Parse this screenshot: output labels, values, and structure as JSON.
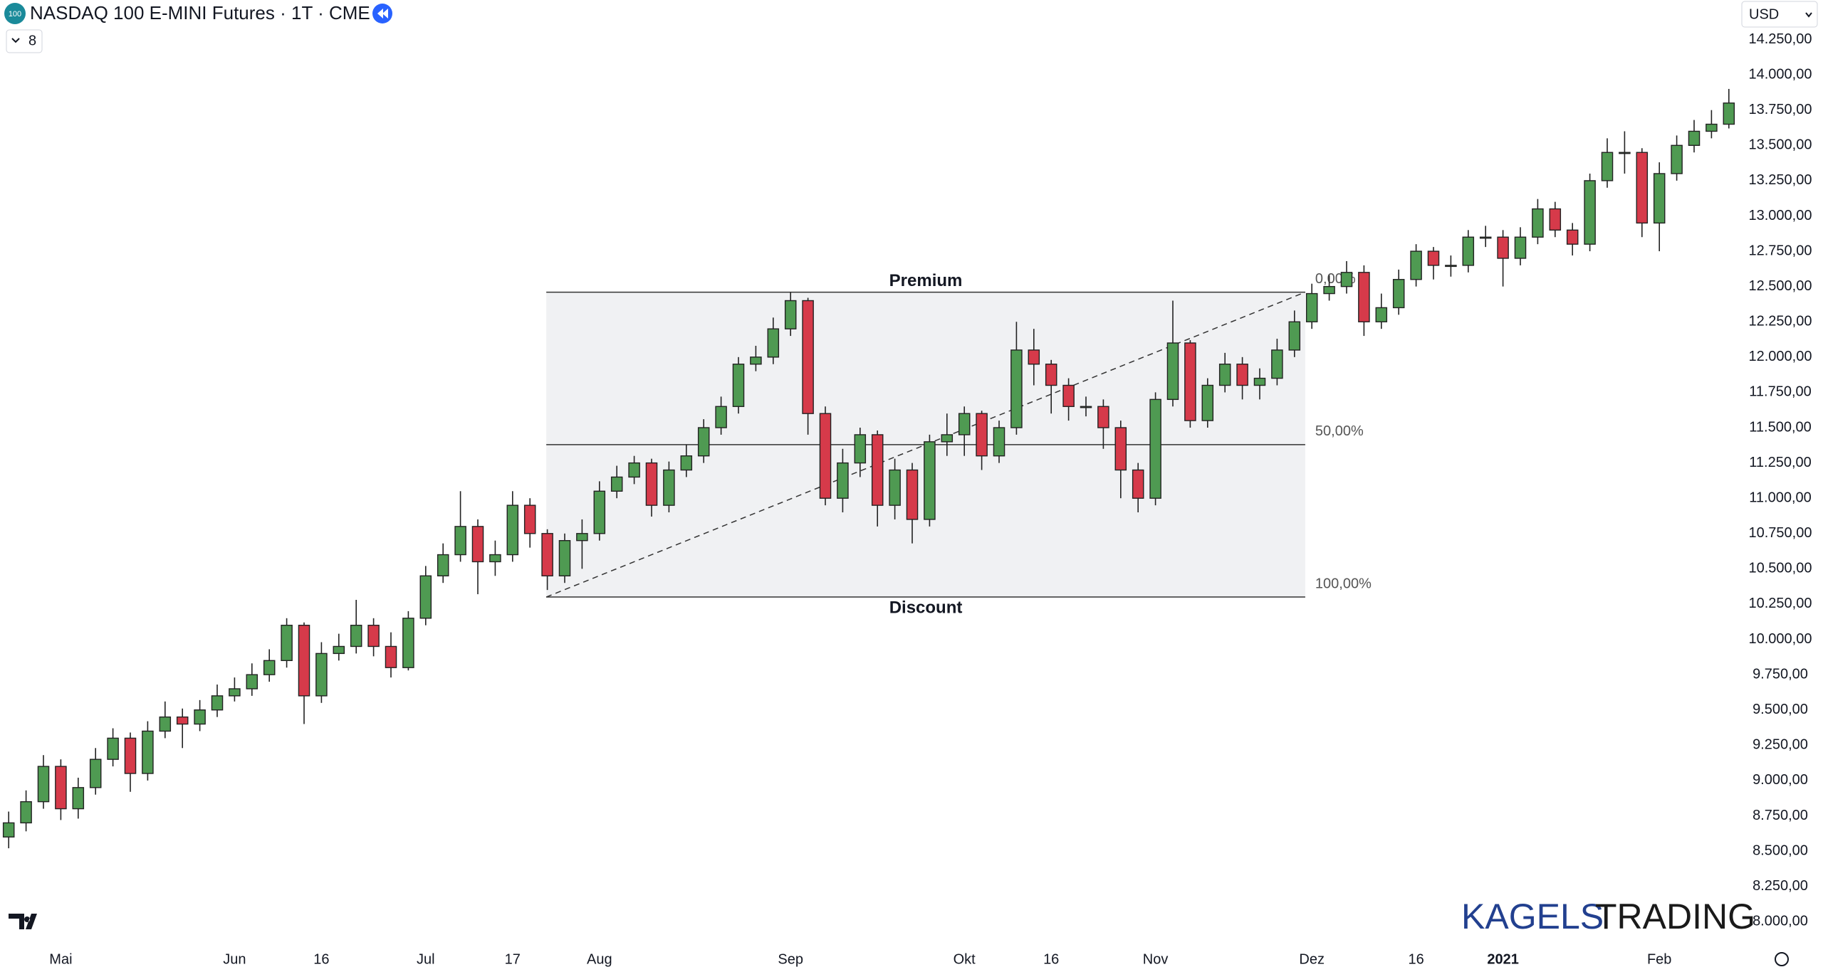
{
  "header": {
    "icon": "100",
    "title": "NASDAQ 100 E-MINI Futures · 1T · CME",
    "interval_badge": "8",
    "currency": "USD"
  },
  "watermark": {
    "brand_1": "KAGELS",
    "brand_2": "TRADING"
  },
  "chart_data": {
    "type": "candlestick",
    "categories": [
      null,
      null,
      null,
      "Mai",
      null,
      null,
      null,
      null,
      null,
      null,
      null,
      null,
      null,
      "Jun",
      null,
      null,
      null,
      null,
      "16",
      null,
      null,
      null,
      null,
      null,
      "Jul",
      null,
      null,
      null,
      null,
      "17",
      null,
      null,
      null,
      null,
      "Aug",
      null,
      null,
      null,
      null,
      null,
      null,
      null,
      null,
      null,
      null,
      "Sep",
      null,
      null,
      null,
      null,
      null,
      null,
      null,
      null,
      null,
      "Okt",
      null,
      null,
      null,
      null,
      "16",
      null,
      null,
      null,
      null,
      null,
      "Nov",
      null,
      null,
      null,
      null,
      null,
      null,
      null,
      null,
      "Dez",
      null,
      null,
      null,
      null,
      null,
      "16",
      null,
      null,
      null,
      null,
      "2021",
      null,
      null,
      null,
      null,
      null,
      null,
      null,
      null,
      "Feb",
      null,
      null,
      null,
      null
    ],
    "open": [
      8600,
      8700,
      8850,
      9100,
      8800,
      8950,
      9150,
      9300,
      9050,
      9350,
      9450,
      9400,
      9500,
      9600,
      9650,
      9750,
      9850,
      10100,
      9600,
      9900,
      9950,
      10100,
      9950,
      9800,
      10150,
      10450,
      10600,
      10800,
      10550,
      10600,
      10950,
      10750,
      10450,
      10700,
      10750,
      11050,
      11150,
      11250,
      10950,
      11200,
      11300,
      11500,
      11650,
      11950,
      12000,
      12200,
      12400,
      11600,
      11000,
      11250,
      11450,
      10950,
      11200,
      10850,
      11400,
      11450,
      11600,
      11300,
      11500,
      12050,
      11950,
      11800,
      11650,
      11650,
      11500,
      11200,
      11000,
      11700,
      12100,
      11550,
      11800,
      11950,
      11800,
      11850,
      12050,
      12250,
      12450,
      12500,
      12600,
      12250,
      12350,
      12550,
      12750,
      12650,
      12650,
      12850,
      12850,
      12700,
      12850,
      13050,
      12900,
      12800,
      13250,
      13450,
      13450,
      12950,
      13300,
      13500,
      13600,
      13650
    ],
    "high": [
      8780,
      8930,
      9180,
      9150,
      9020,
      9230,
      9370,
      9340,
      9420,
      9560,
      9510,
      9570,
      9680,
      9730,
      9830,
      9930,
      10150,
      10120,
      9980,
      10040,
      10280,
      10150,
      10050,
      10200,
      10520,
      10680,
      11050,
      10850,
      10700,
      11050,
      11000,
      10780,
      10750,
      10850,
      11120,
      11230,
      11300,
      11280,
      11260,
      11380,
      11560,
      11720,
      12000,
      12080,
      12280,
      12460,
      12420,
      11650,
      11350,
      11500,
      11480,
      11280,
      11250,
      11450,
      11600,
      11650,
      11620,
      11550,
      12250,
      12200,
      11980,
      11850,
      11720,
      11700,
      11550,
      11250,
      11750,
      12400,
      12120,
      11850,
      12030,
      12000,
      11920,
      12130,
      12330,
      12520,
      12580,
      12680,
      12650,
      12450,
      12620,
      12800,
      12780,
      12720,
      12900,
      12930,
      12900,
      12920,
      13120,
      13100,
      12950,
      13300,
      13550,
      13600,
      13480,
      13380,
      13570,
      13680,
      13750,
      13900
    ],
    "low": [
      8520,
      8640,
      8800,
      8720,
      8730,
      8900,
      9100,
      8920,
      9000,
      9300,
      9230,
      9350,
      9450,
      9560,
      9600,
      9700,
      9800,
      9400,
      9550,
      9850,
      9900,
      9880,
      9730,
      9780,
      10100,
      10400,
      10550,
      10320,
      10450,
      10550,
      10650,
      10350,
      10400,
      10500,
      10700,
      11000,
      11100,
      10870,
      10900,
      11150,
      11250,
      11450,
      11600,
      11900,
      11950,
      12150,
      11450,
      10950,
      10900,
      11150,
      10800,
      10850,
      10680,
      10800,
      11300,
      11300,
      11200,
      11250,
      11450,
      11800,
      11600,
      11550,
      11580,
      11350,
      11000,
      10900,
      10950,
      11650,
      11500,
      11500,
      11750,
      11700,
      11700,
      11800,
      12000,
      12200,
      12400,
      12450,
      12150,
      12200,
      12300,
      12500,
      12550,
      12570,
      12600,
      12780,
      12500,
      12650,
      12800,
      12850,
      12720,
      12750,
      13200,
      13300,
      12850,
      12750,
      13250,
      13450,
      13550,
      13620
    ],
    "close": [
      8700,
      8850,
      9100,
      8800,
      8950,
      9150,
      9300,
      9050,
      9350,
      9450,
      9400,
      9500,
      9600,
      9650,
      9750,
      9850,
      10100,
      9600,
      9900,
      9950,
      10100,
      9950,
      9800,
      10150,
      10450,
      10600,
      10800,
      10550,
      10600,
      10950,
      10750,
      10450,
      10700,
      10750,
      11050,
      11150,
      11250,
      10950,
      11200,
      11300,
      11500,
      11650,
      11950,
      12000,
      12200,
      12400,
      11600,
      11000,
      11250,
      11450,
      10950,
      11200,
      10850,
      11400,
      11450,
      11600,
      11300,
      11500,
      12050,
      11950,
      11800,
      11650,
      11650,
      11500,
      11200,
      11000,
      11700,
      12100,
      11550,
      11800,
      11950,
      11800,
      11850,
      12050,
      12250,
      12450,
      12500,
      12600,
      12250,
      12350,
      12550,
      12750,
      12650,
      12650,
      12850,
      12850,
      12700,
      12850,
      13050,
      12900,
      12800,
      13250,
      13450,
      13450,
      12950,
      13300,
      13500,
      13600,
      13650,
      13800
    ],
    "up_color": "#4f9a52",
    "down_color": "#d63a4a",
    "ylim": [
      7845,
      14530
    ],
    "yticks": [
      {
        "value": 8000,
        "label": "8.000,00"
      },
      {
        "value": 8250,
        "label": "8.250,00"
      },
      {
        "value": 8500,
        "label": "8.500,00"
      },
      {
        "value": 8750,
        "label": "8.750,00"
      },
      {
        "value": 9000,
        "label": "9.000,00"
      },
      {
        "value": 9250,
        "label": "9.250,00"
      },
      {
        "value": 9500,
        "label": "9.500,00"
      },
      {
        "value": 9750,
        "label": "9.750,00"
      },
      {
        "value": 10000,
        "label": "10.000,00"
      },
      {
        "value": 10250,
        "label": "10.250,00"
      },
      {
        "value": 10500,
        "label": "10.500,00"
      },
      {
        "value": 10750,
        "label": "10.750,00"
      },
      {
        "value": 11000,
        "label": "11.000,00"
      },
      {
        "value": 11250,
        "label": "11.250,00"
      },
      {
        "value": 11500,
        "label": "11.500,00"
      },
      {
        "value": 11750,
        "label": "11.750,00"
      },
      {
        "value": 12000,
        "label": "12.000,00"
      },
      {
        "value": 12250,
        "label": "12.250,00"
      },
      {
        "value": 12500,
        "label": "12.500,00"
      },
      {
        "value": 12750,
        "label": "12.750,00"
      },
      {
        "value": 13000,
        "label": "13.000,00"
      },
      {
        "value": 13250,
        "label": "13.250,00"
      },
      {
        "value": 13500,
        "label": "13.500,00"
      },
      {
        "value": 13750,
        "label": "13.750,00"
      },
      {
        "value": 14000,
        "label": "14.000,00"
      },
      {
        "value": 14250,
        "label": "14.250,00"
      }
    ],
    "grid": false,
    "zone": {
      "top_label": "Premium",
      "bottom_label": "Discount",
      "levels": [
        {
          "value": 12460,
          "label": "0,00%"
        },
        {
          "value": 11380,
          "label": "50,00%"
        },
        {
          "value": 10300,
          "label": "100,00%"
        }
      ]
    }
  }
}
